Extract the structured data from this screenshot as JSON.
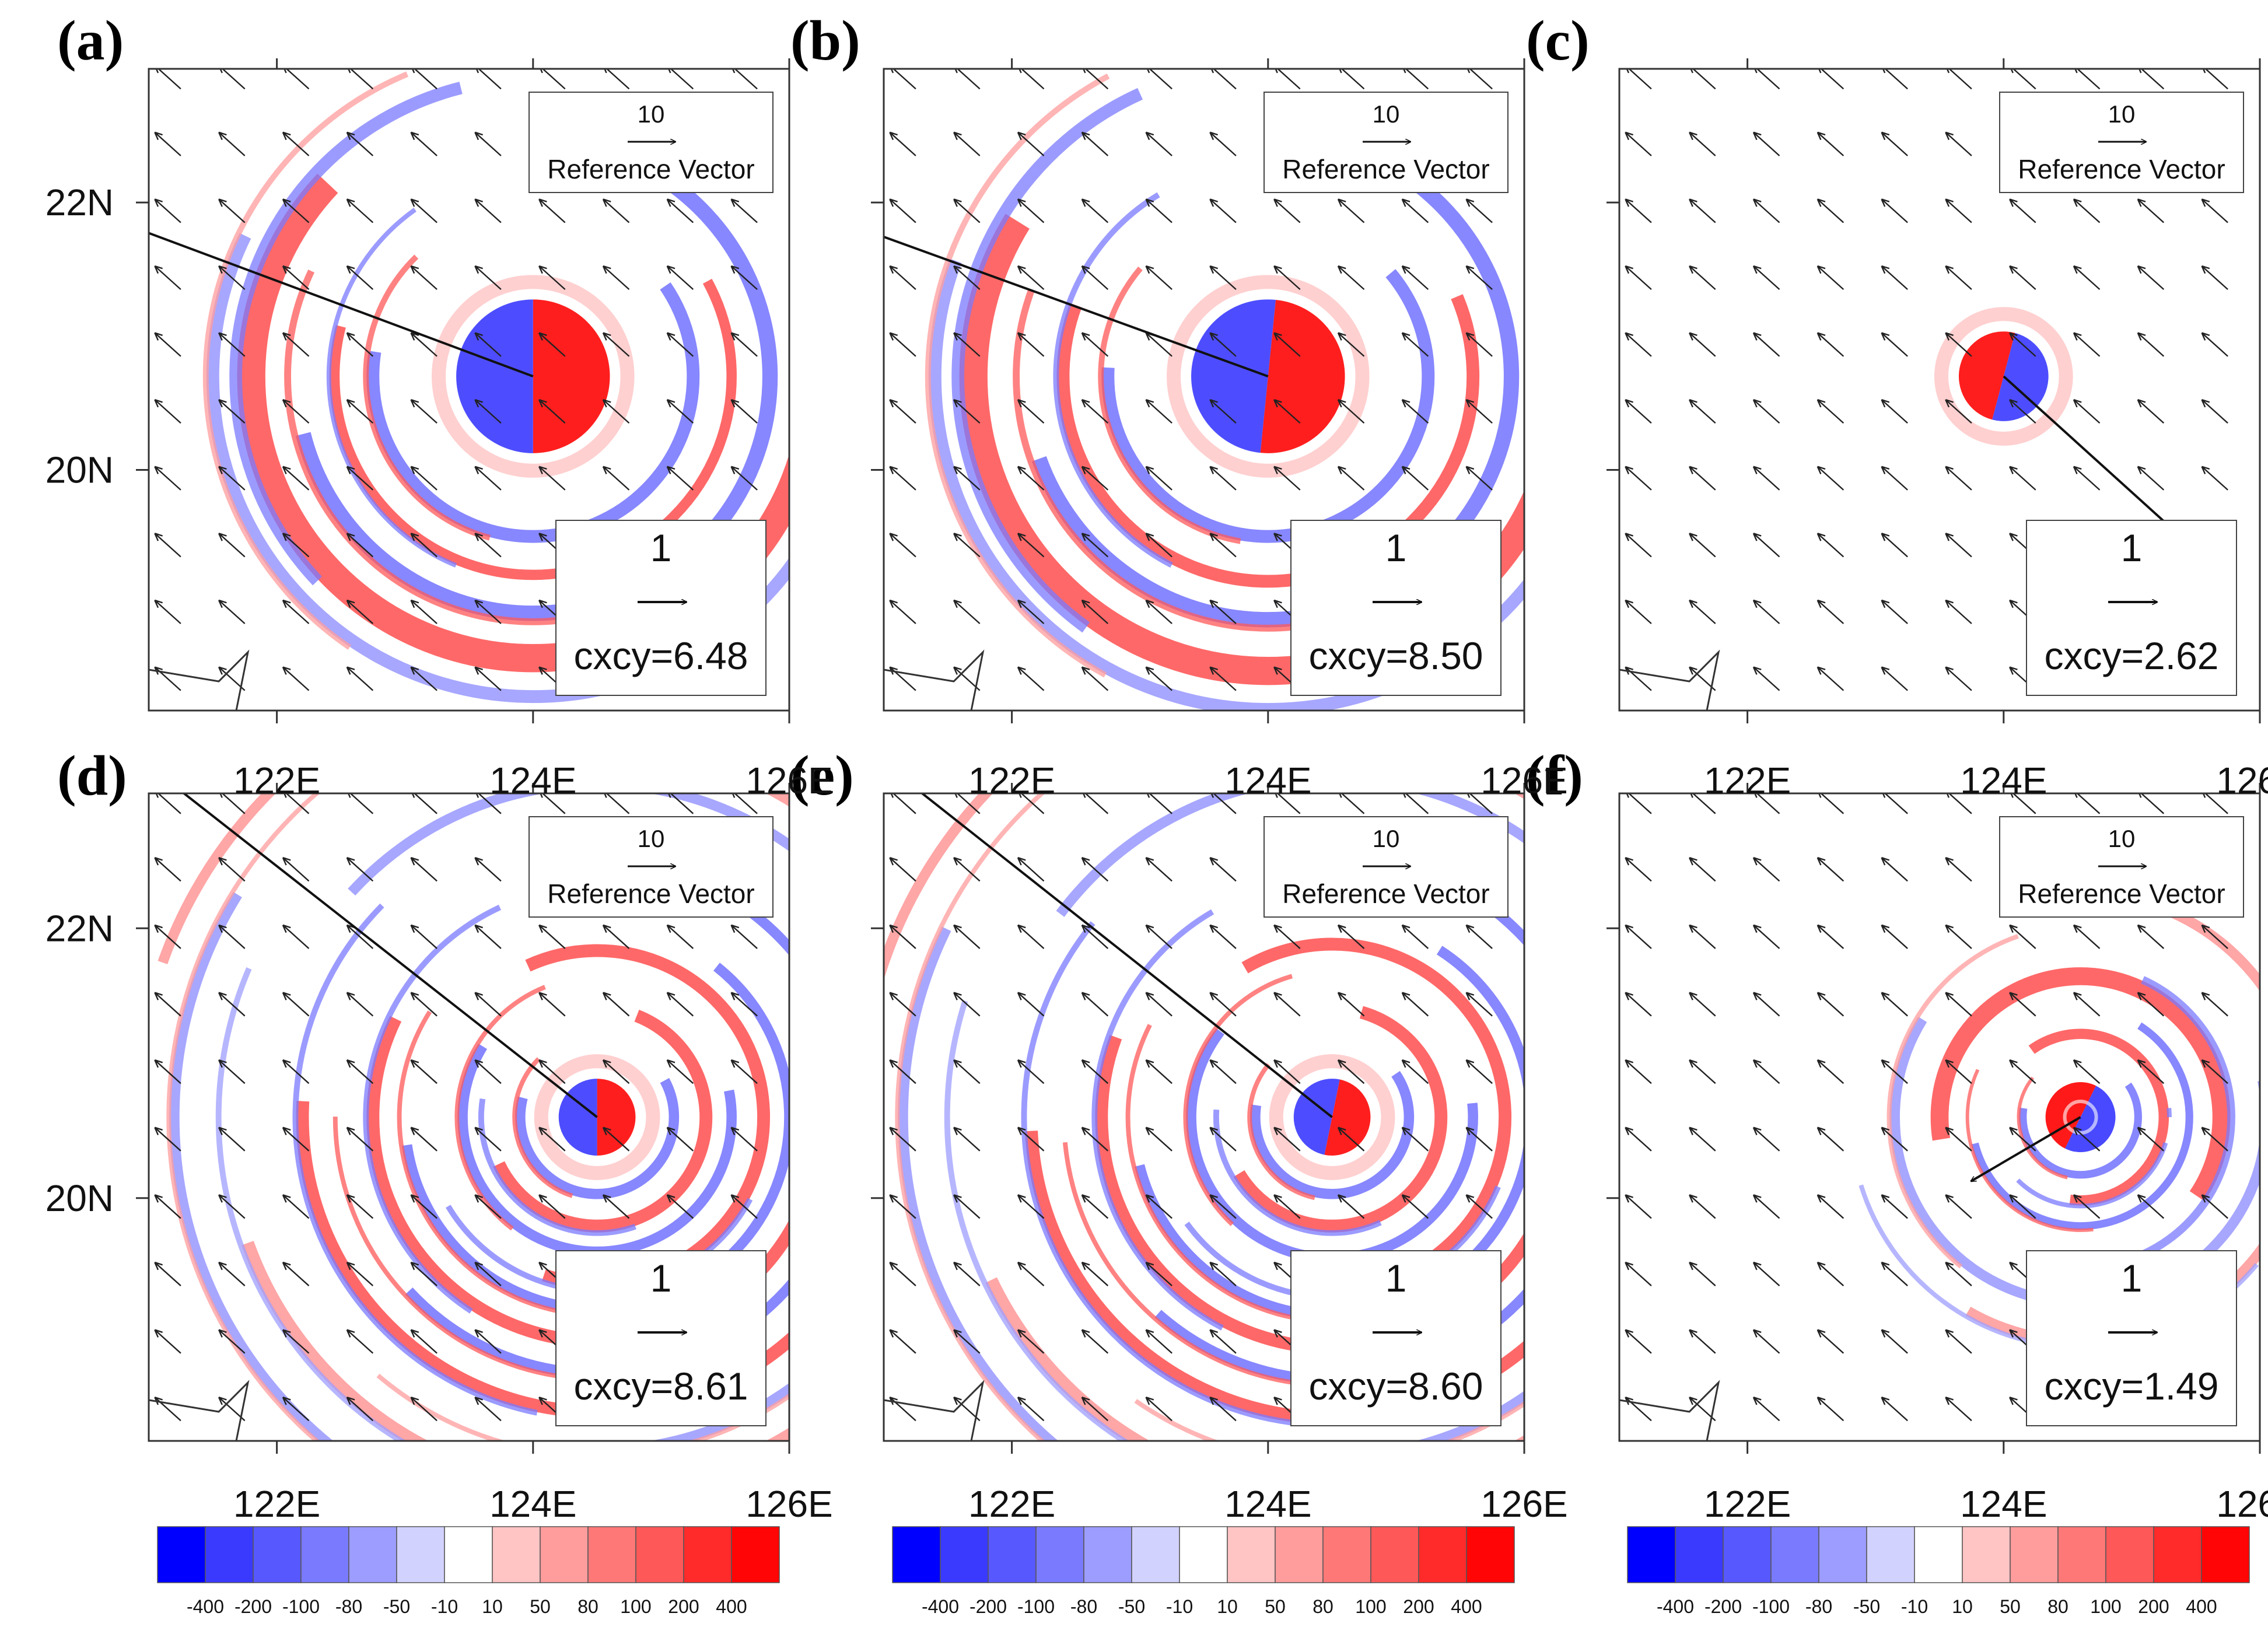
{
  "chart_data": {
    "type": "vector-contour-panels",
    "panels": [
      {
        "label": "(a)",
        "cxcy": "cxcy=6.48",
        "shift_vector": {
          "dx": -4.2,
          "dy": 1.5
        },
        "vortex_center": {
          "lon": 124.0,
          "lat": 20.7
        },
        "pattern": "wavenumber-1",
        "rings": [
          {
            "r": 0.6,
            "w": 0.7,
            "sign": 1,
            "level": 3,
            "phase": 0
          },
          {
            "r": 1.25,
            "w": 0.1,
            "sign": -1,
            "level": 2,
            "phase": 0.6
          },
          {
            "r": 1.55,
            "w": 0.08,
            "sign": 1,
            "level": 2,
            "phase": 0.5
          },
          {
            "r": 1.85,
            "w": 0.12,
            "sign": -1,
            "level": 2,
            "phase": 1.0
          },
          {
            "r": 2.2,
            "w": 0.22,
            "sign": 1,
            "level": 2,
            "phase": 0
          },
          {
            "r": 2.5,
            "w": 0.1,
            "sign": -1,
            "level": 1,
            "phase": 0.3
          }
        ]
      },
      {
        "label": "(b)",
        "cxcy": "cxcy=8.50",
        "shift_vector": {
          "dx": -4.6,
          "dy": 1.6
        },
        "vortex_center": {
          "lon": 124.0,
          "lat": 20.7
        },
        "pattern": "wavenumber-1",
        "rings": [
          {
            "r": 0.6,
            "w": 0.7,
            "sign": 1,
            "level": 3,
            "phase": 0.1
          },
          {
            "r": 1.25,
            "w": 0.1,
            "sign": -1,
            "level": 2,
            "phase": 0.7
          },
          {
            "r": 1.6,
            "w": 0.1,
            "sign": 1,
            "level": 2,
            "phase": 0.4
          },
          {
            "r": 1.9,
            "w": 0.12,
            "sign": -1,
            "level": 2,
            "phase": 1.1
          },
          {
            "r": 2.3,
            "w": 0.22,
            "sign": 1,
            "level": 2,
            "phase": 0.2
          },
          {
            "r": 2.6,
            "w": 0.1,
            "sign": -1,
            "level": 1,
            "phase": 0.4
          }
        ]
      },
      {
        "label": "(c)",
        "cxcy": "cxcy=2.62",
        "shift_vector": {
          "dx": 1.5,
          "dy": -1.3
        },
        "vortex_center": {
          "lon": 124.0,
          "lat": 20.7
        },
        "pattern": "wavenumber-1-reversed",
        "rings": [
          {
            "r": 0.35,
            "w": 0.5,
            "sign": 1,
            "level": 3,
            "phase": 3.4
          }
        ]
      },
      {
        "label": "(d)",
        "cxcy": "cxcy=8.61",
        "shift_vector": {
          "dx": -4.3,
          "dy": 3.2
        },
        "vortex_center": {
          "lon": 124.5,
          "lat": 20.6
        },
        "pattern": "multi-ring",
        "rings": [
          {
            "r": 0.3,
            "w": 0.6,
            "sign": 1,
            "level": 3,
            "phase": 0
          },
          {
            "r": 0.6,
            "w": 0.08,
            "sign": -1,
            "level": 2,
            "phase": 0.5
          },
          {
            "r": 0.85,
            "w": 0.1,
            "sign": 1,
            "level": 2,
            "phase": 1.2
          },
          {
            "r": 1.05,
            "w": 0.08,
            "sign": -1,
            "level": 2,
            "phase": 0.2
          },
          {
            "r": 1.3,
            "w": 0.1,
            "sign": 1,
            "level": 2,
            "phase": 2.0
          },
          {
            "r": 1.5,
            "w": 0.08,
            "sign": -1,
            "level": 2,
            "phase": 0.9
          },
          {
            "r": 1.75,
            "w": 0.1,
            "sign": 1,
            "level": 2,
            "phase": 0.3
          },
          {
            "r": 2.0,
            "w": 0.08,
            "sign": -1,
            "level": 2,
            "phase": 1.5
          },
          {
            "r": 2.3,
            "w": 0.1,
            "sign": 1,
            "level": 2,
            "phase": 0.7
          },
          {
            "r": 2.6,
            "w": 0.08,
            "sign": -1,
            "level": 1,
            "phase": 2.4
          },
          {
            "r": 2.9,
            "w": 0.1,
            "sign": 1,
            "level": 1,
            "phase": 1.1
          },
          {
            "r": 3.3,
            "w": 0.08,
            "sign": -1,
            "level": 1,
            "phase": 0.2
          },
          {
            "r": 3.6,
            "w": 0.08,
            "sign": 1,
            "level": 1,
            "phase": 2.8
          }
        ]
      },
      {
        "label": "(e)",
        "cxcy": "cxcy=8.60",
        "shift_vector": {
          "dx": -4.4,
          "dy": 3.3
        },
        "vortex_center": {
          "lon": 124.5,
          "lat": 20.6
        },
        "pattern": "multi-ring",
        "rings": [
          {
            "r": 0.3,
            "w": 0.6,
            "sign": 1,
            "level": 3,
            "phase": 0.2
          },
          {
            "r": 0.6,
            "w": 0.08,
            "sign": -1,
            "level": 2,
            "phase": 0.6
          },
          {
            "r": 0.85,
            "w": 0.1,
            "sign": 1,
            "level": 2,
            "phase": 1.3
          },
          {
            "r": 1.1,
            "w": 0.08,
            "sign": -1,
            "level": 2,
            "phase": 0.1
          },
          {
            "r": 1.35,
            "w": 0.1,
            "sign": 1,
            "level": 2,
            "phase": 2.1
          },
          {
            "r": 1.55,
            "w": 0.08,
            "sign": -1,
            "level": 2,
            "phase": 1.0
          },
          {
            "r": 1.8,
            "w": 0.1,
            "sign": 1,
            "level": 2,
            "phase": 0.4
          },
          {
            "r": 2.05,
            "w": 0.08,
            "sign": -1,
            "level": 2,
            "phase": 1.6
          },
          {
            "r": 2.35,
            "w": 0.1,
            "sign": 1,
            "level": 2,
            "phase": 0.8
          },
          {
            "r": 2.65,
            "w": 0.08,
            "sign": -1,
            "level": 1,
            "phase": 2.5
          },
          {
            "r": 2.95,
            "w": 0.1,
            "sign": 1,
            "level": 1,
            "phase": 1.2
          },
          {
            "r": 3.35,
            "w": 0.08,
            "sign": -1,
            "level": 1,
            "phase": 0.3
          },
          {
            "r": 3.7,
            "w": 0.08,
            "sign": 1,
            "level": 1,
            "phase": 2.9
          }
        ]
      },
      {
        "label": "(f)",
        "cxcy": "cxcy=1.49",
        "shift_vector": {
          "dx": -0.9,
          "dy": -0.5
        },
        "vortex_center": {
          "lon": 124.6,
          "lat": 20.6
        },
        "pattern": "multi-ring",
        "rings": [
          {
            "r": 0.2,
            "w": 0.4,
            "sign": 1,
            "level": 3,
            "phase": 3.6
          },
          {
            "r": 0.45,
            "w": 0.06,
            "sign": -1,
            "level": 2,
            "phase": 0.6
          },
          {
            "r": 0.65,
            "w": 0.08,
            "sign": 1,
            "level": 2,
            "phase": 2.2
          },
          {
            "r": 0.85,
            "w": 0.06,
            "sign": -1,
            "level": 2,
            "phase": 1.0
          },
          {
            "r": 1.1,
            "w": 0.14,
            "sign": 1,
            "level": 2,
            "phase": 3.3
          },
          {
            "r": 1.45,
            "w": 0.08,
            "sign": -1,
            "level": 1,
            "phase": 0.2
          },
          {
            "r": 1.75,
            "w": 0.08,
            "sign": 1,
            "level": 1,
            "phase": 1.8
          }
        ]
      }
    ],
    "x_axis": {
      "range": [
        121.0,
        126.0
      ],
      "ticks": [
        122,
        124,
        126
      ],
      "tick_labels": [
        "122E",
        "124E",
        "126E"
      ]
    },
    "y_axis": {
      "range": [
        18.2,
        23.0
      ],
      "ticks": [
        20,
        22
      ],
      "tick_labels": [
        "20N",
        "22N"
      ]
    },
    "background_wind": {
      "u": -1.0,
      "v": 0.9,
      "grid_step_deg": 0.5
    },
    "reference_vector": {
      "magnitude": "10",
      "label": "Reference Vector"
    },
    "legend_vector": {
      "magnitude": "1"
    },
    "colorbar": {
      "tick_labels": [
        "-400",
        "-200",
        "-100",
        "-80",
        "-50",
        "-10",
        "10",
        "50",
        "80",
        "100",
        "200",
        "400"
      ],
      "colors": [
        "#0000ff",
        "#3a3aff",
        "#5858ff",
        "#7a7aff",
        "#9d9dff",
        "#d2d2ff",
        "#ffffff",
        "#ffc4c4",
        "#ff9c9c",
        "#ff7878",
        "#ff5858",
        "#ff2a2a",
        "#ff0505"
      ]
    }
  }
}
